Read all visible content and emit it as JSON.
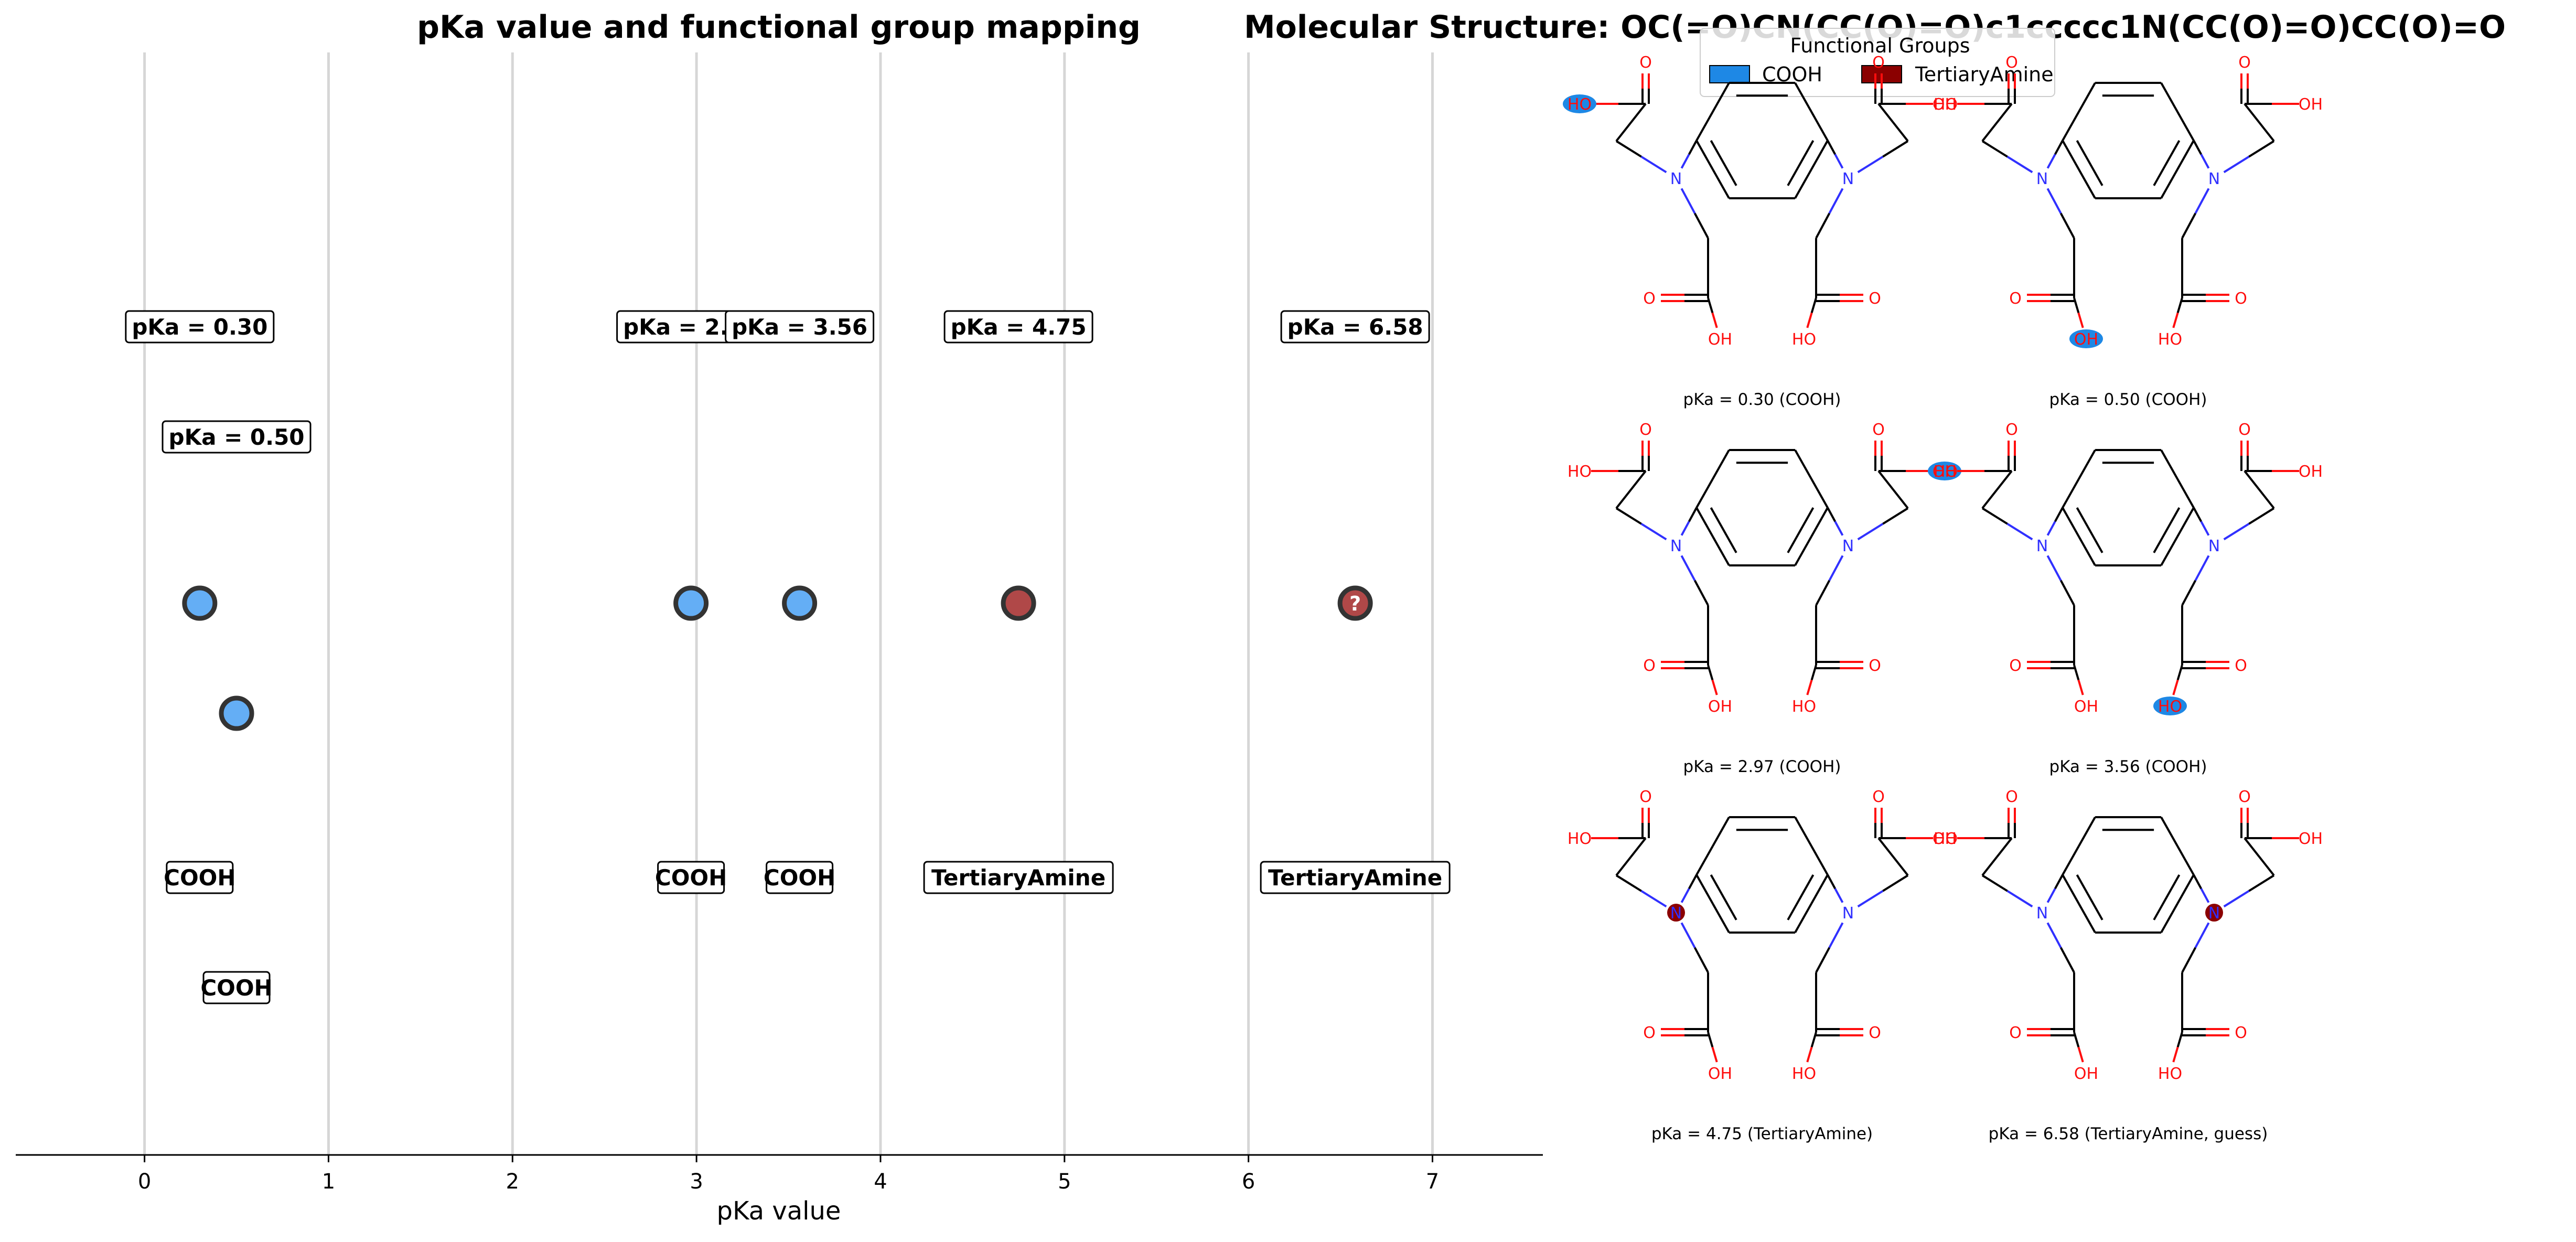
{
  "chart_data": {
    "type": "scatter",
    "title": "pKa value and functional group mapping",
    "xlabel": "pKa value",
    "ylabel": "",
    "xlim": [
      -0.7,
      7.6
    ],
    "x_ticks": [
      "0",
      "1",
      "2",
      "3",
      "4",
      "5",
      "6",
      "7"
    ],
    "grid": "vertical",
    "points": [
      {
        "pka": 0.3,
        "label": "pKa = 0.30",
        "group": "COOH",
        "row": 0,
        "guess": false
      },
      {
        "pka": 0.5,
        "label": "pKa = 0.50",
        "group": "COOH",
        "row": 1,
        "guess": false
      },
      {
        "pka": 2.97,
        "label": "pKa = 2.97",
        "group": "COOH",
        "row": 0,
        "guess": false
      },
      {
        "pka": 3.56,
        "label": "pKa = 3.56",
        "group": "COOH",
        "row": 0,
        "guess": false
      },
      {
        "pka": 4.75,
        "label": "pKa = 4.75",
        "group": "TertiaryAmine",
        "row": 0,
        "guess": false
      },
      {
        "pka": 6.58,
        "label": "pKa = 6.58",
        "group": "TertiaryAmine",
        "row": 0,
        "guess": true
      }
    ],
    "guess_marker": "?",
    "colors": {
      "COOH_fill": "#64aef5",
      "TertiaryAmine_fill": "#b04848",
      "edge": "#333333"
    }
  },
  "structure_panel": {
    "title": "Molecular Structure: OC(=O)CN(CC(O)=O)c1ccccc1N(CC(O)=O)CC(O)=O",
    "legend": {
      "title": "Functional Groups",
      "items": [
        {
          "label": "COOH",
          "color": "#1e88e5"
        },
        {
          "label": "TertiaryAmine",
          "color": "#8b0000"
        }
      ]
    },
    "captions": [
      "pKa = 0.30 (COOH)",
      "pKa = 0.50 (COOH)",
      "pKa = 2.97 (COOH)",
      "pKa = 3.56 (COOH)",
      "pKa = 4.75 (TertiaryAmine)",
      "pKa = 6.58 (TertiaryAmine, guess)"
    ],
    "atom_labels": {
      "oxygen": "O",
      "hydroxyl_right": "OH",
      "hydroxyl_left": "HO",
      "nitrogen": "N"
    }
  }
}
